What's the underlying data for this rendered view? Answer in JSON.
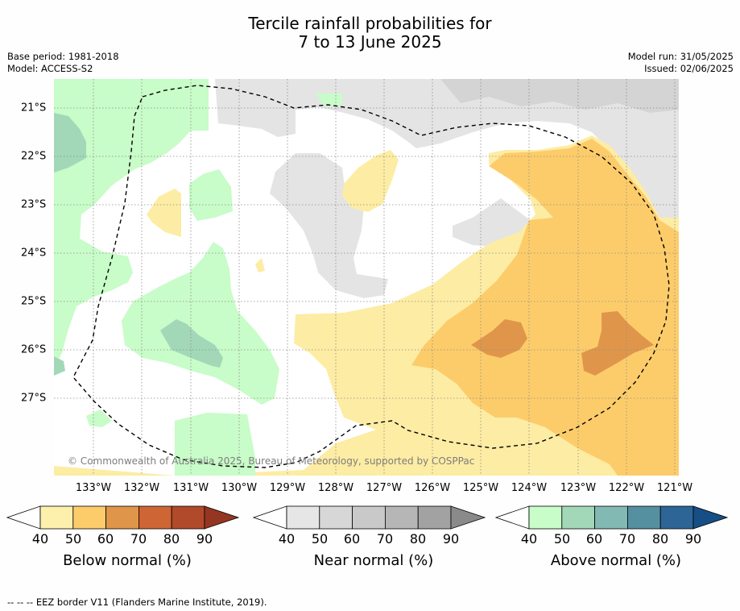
{
  "title_line1": "Tercile rainfall probabilities for",
  "title_line2": "7 to 13 June 2025",
  "base_period": "Base period: 1981-2018",
  "model": "Model: ACCESS-S2",
  "model_run": "Model run: 31/05/2025",
  "issued": "Issued: 02/06/2025",
  "copyright": "© Commonwealth of Australia 2025, Bureau of Meteorology, supported by COSPPac",
  "x_ticks": [
    "133°W",
    "132°W",
    "131°W",
    "130°W",
    "129°W",
    "128°W",
    "127°W",
    "126°W",
    "125°W",
    "124°W",
    "123°W",
    "122°W",
    "121°W"
  ],
  "y_ticks": [
    "21°S",
    "22°S",
    "23°S",
    "24°S",
    "25°S",
    "26°S",
    "27°S"
  ],
  "legends": [
    {
      "title": "Below normal (%)",
      "ticks": [
        "40",
        "50",
        "60",
        "70",
        "80",
        "90"
      ],
      "colors": [
        "#fdf0ad",
        "#fdcc6a",
        "#e0964a",
        "#cd6534",
        "#b04a2a",
        "#953622"
      ]
    },
    {
      "title": "Near normal (%)",
      "ticks": [
        "40",
        "50",
        "60",
        "70",
        "80",
        "90"
      ],
      "colors": [
        "#e6e6e6",
        "#d7d7d7",
        "#c9c9c9",
        "#b6b6b6",
        "#a2a2a2",
        "#8a8a8a"
      ]
    },
    {
      "title": "Above normal (%)",
      "ticks": [
        "40",
        "50",
        "60",
        "70",
        "80",
        "90"
      ],
      "colors": [
        "#c8fcc8",
        "#a2d8b8",
        "#82b9b2",
        "#5590a0",
        "#2d6696",
        "#164f86"
      ]
    }
  ],
  "footnote": "--  --  -- EEZ border V11 (Flanders Marine Institute, 2019).",
  "colors": {
    "below_40": "#fdeca3",
    "below_50": "#fdcc6a",
    "below_60": "#e0964a",
    "near_40": "#e4e4e4",
    "near_50": "#d6d6d6",
    "above_40": "#c8fcc8",
    "above_50": "#a2d8b8"
  }
}
